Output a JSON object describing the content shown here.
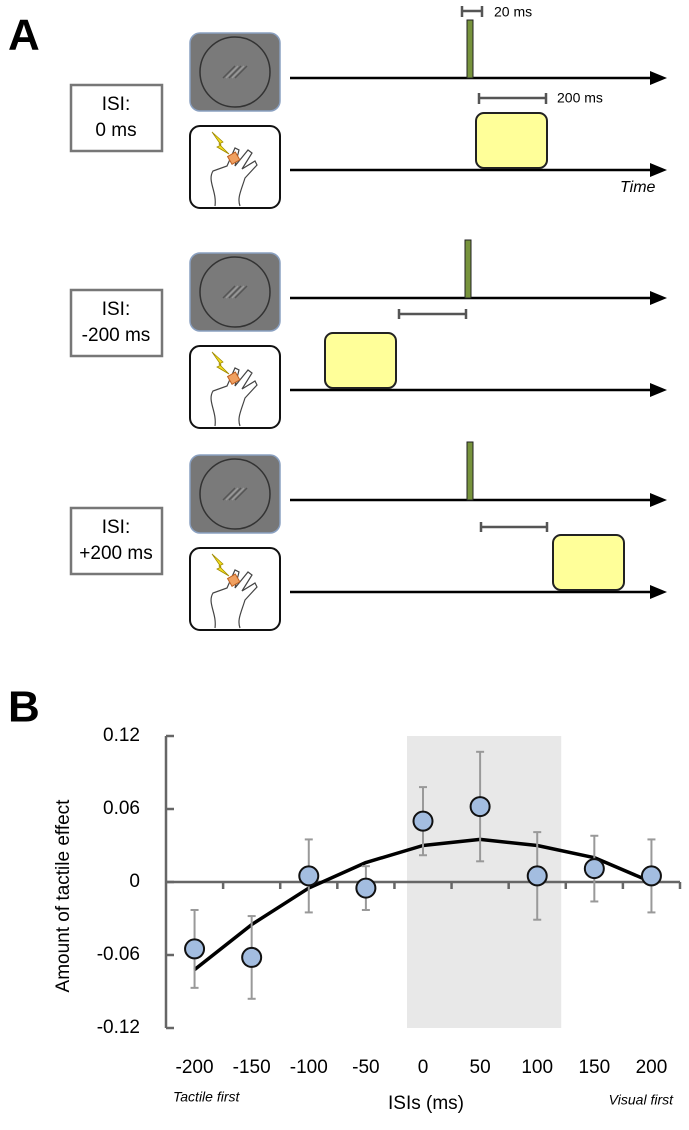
{
  "panel_a": {
    "label": "A",
    "rows": [
      {
        "isi_label": [
          "ISI:",
          "0 ms"
        ]
      },
      {
        "isi_label": [
          "ISI:",
          "-200 ms"
        ]
      },
      {
        "isi_label": [
          "ISI:",
          "+200 ms"
        ]
      }
    ],
    "visual_duration": "20 ms",
    "tactile_duration": "200 ms",
    "time_label": "Time"
  },
  "chart_data": {
    "type": "scatter",
    "panel_label": "B",
    "x_label": "ISIs (ms)",
    "y_label": "Amount of tactile effect",
    "annotations": [
      "Tactile first",
      "Visual first"
    ],
    "x": [
      -200,
      -150,
      -100,
      -50,
      0,
      50,
      100,
      150,
      200
    ],
    "values": [
      -0.055,
      -0.062,
      0.005,
      -0.005,
      0.05,
      0.062,
      0.005,
      0.011,
      0.005
    ],
    "errors": [
      0.032,
      0.034,
      0.03,
      0.018,
      0.028,
      0.045,
      0.036,
      0.027,
      0.03
    ],
    "color": "#a3bde0",
    "fit": {
      "x": [
        -200,
        -150,
        -100,
        -50,
        0,
        50,
        100,
        150,
        200
      ],
      "values": [
        -0.072,
        -0.035,
        -0.005,
        0.016,
        0.03,
        0.035,
        0.03,
        0.02,
        0
      ]
    },
    "highlight": [
      -14,
      121
    ],
    "xlim": [
      -225,
      225
    ],
    "xticks": [
      -200,
      -150,
      -100,
      -50,
      0,
      50,
      100,
      150,
      200
    ],
    "ylim": [
      -0.12,
      0.12
    ],
    "yticks": [
      0.12,
      0.06,
      0,
      -0.06,
      -0.12
    ]
  }
}
